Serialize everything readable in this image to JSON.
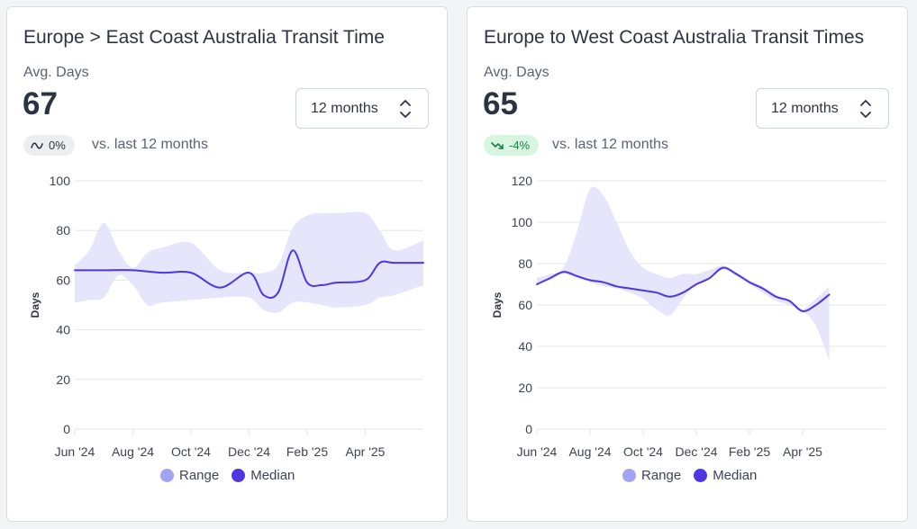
{
  "colors": {
    "range_fill": "#e5e5fb",
    "range_legend": "#a3a3f5",
    "median": "#4f36e3",
    "grid": "#e3e5e8",
    "axis_text": "#3d4452"
  },
  "legend": {
    "range_label": "Range",
    "median_label": "Median"
  },
  "cards": [
    {
      "title": "Europe > East Coast Australia Transit Time",
      "metric_label": "Avg. Days",
      "metric_value": "67",
      "change": "0%",
      "change_trend": "flat",
      "change_icon": "trend-flat-icon",
      "vs_text": "vs. last 12 months",
      "period": "12 months",
      "chart_data": {
        "type": "area",
        "ylabel": "Days",
        "xlabel": "",
        "ylim": [
          0,
          100
        ],
        "yticks": [
          0,
          20,
          40,
          60,
          80,
          100
        ],
        "xlim": [
          0,
          12
        ],
        "x_tick_labels": [
          "Jun '24",
          "Aug '24",
          "Oct '24",
          "Dec '24",
          "Feb '25",
          "Apr '25"
        ],
        "x_tick_positions": [
          0,
          2,
          4,
          6,
          8,
          10
        ],
        "grid": true,
        "legend_position": "bottom",
        "series": [
          {
            "name": "Median",
            "x": [
              0,
              1,
              2,
              3,
              4,
              5,
              6,
              6.5,
              7,
              7.5,
              8,
              8.5,
              9,
              10,
              10.5,
              11,
              12
            ],
            "values": [
              64,
              64,
              64,
              63,
              63,
              57,
              63,
              54,
              55,
              72,
              59,
              58,
              59,
              60,
              67,
              67,
              67
            ]
          },
          {
            "name": "Range",
            "x": [
              0,
              0.5,
              1,
              1.5,
              2,
              2.5,
              3,
              4,
              5,
              6,
              6.5,
              7,
              7.5,
              8,
              8.5,
              9,
              10,
              10.5,
              11,
              12
            ],
            "upper": [
              66,
              72,
              83,
              72,
              65,
              71,
              73,
              75,
              64,
              63,
              63,
              66,
              81,
              86,
              87,
              87,
              87,
              80,
              72,
              76
            ],
            "lower": [
              51,
              52,
              53,
              62,
              58,
              50,
              51,
              52,
              53,
              53,
              48,
              47,
              51,
              51,
              50,
              49,
              50,
              53,
              54,
              58
            ]
          }
        ]
      }
    },
    {
      "title": "Europe to West Coast Australia Transit Times",
      "metric_label": "Avg. Days",
      "metric_value": "65",
      "change": "-4%",
      "change_trend": "down",
      "change_icon": "trend-down-icon",
      "vs_text": "vs. last 12 months",
      "period": "12 months",
      "chart_data": {
        "type": "area",
        "ylabel": "Days",
        "xlabel": "",
        "ylim": [
          0,
          120
        ],
        "yticks": [
          0,
          20,
          40,
          60,
          80,
          100,
          120
        ],
        "xlim": [
          0,
          12
        ],
        "x_tick_labels": [
          "Jun '24",
          "Aug '24",
          "Oct '24",
          "Dec '24",
          "Feb '25",
          "Apr '25"
        ],
        "x_tick_positions": [
          0,
          2,
          4,
          6,
          8,
          10
        ],
        "grid": true,
        "legend_position": "bottom",
        "series": [
          {
            "name": "Median",
            "x": [
              0,
              0.5,
              1,
              1.5,
              2,
              2.5,
              3,
              3.5,
              4,
              4.5,
              5,
              5.5,
              6,
              6.5,
              7,
              7.5,
              8,
              8.5,
              9,
              9.5,
              10,
              10.5,
              11
            ],
            "values": [
              70,
              73,
              76,
              74,
              72,
              71,
              69,
              68,
              67,
              66,
              64,
              66,
              70,
              73,
              78,
              75,
              71,
              68,
              64,
              62,
              57,
              60,
              65
            ]
          },
          {
            "name": "Range",
            "x": [
              0,
              0.5,
              1,
              1.5,
              2,
              2.5,
              3,
              3.5,
              4,
              4.5,
              5,
              5.5,
              6,
              6.5,
              7,
              7.5,
              8,
              8.5,
              9,
              9.5,
              10,
              10.5,
              11
            ],
            "upper": [
              73,
              75,
              78,
              95,
              116,
              113,
              100,
              86,
              78,
              75,
              73,
              75,
              75,
              77,
              79,
              76,
              72,
              69,
              65,
              62,
              58,
              63,
              69
            ],
            "lower": [
              70,
              72,
              75,
              73,
              71,
              69,
              68,
              66,
              63,
              58,
              55,
              63,
              70,
              73,
              77,
              74,
              70,
              66,
              62,
              60,
              57,
              50,
              33
            ]
          }
        ]
      }
    }
  ]
}
